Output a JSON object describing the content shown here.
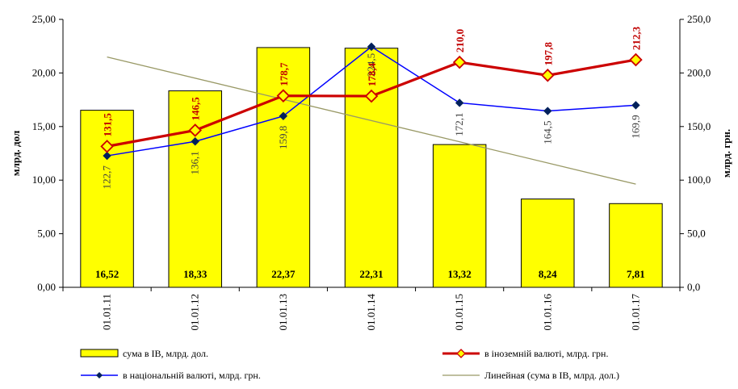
{
  "colors": {
    "bar_fill": "#ffff00",
    "bar_stroke": "#000000",
    "foreign_line": "#cc0000",
    "foreign_marker": "#ffff00",
    "national_line": "#0000ff",
    "national_marker": "#00205b",
    "trend_line": "#999966"
  },
  "chart_data": {
    "type": "bar",
    "categories": [
      "01.01.11",
      "01.01.12",
      "01.01.13",
      "01.01.14",
      "01.01.15",
      "01.01.16",
      "01.01.17"
    ],
    "left_axis": {
      "label": "млрд. дол",
      "ylim": [
        0,
        25
      ],
      "ticks": [
        "0,00",
        "5,00",
        "10,00",
        "15,00",
        "20,00",
        "25,00"
      ],
      "tick_values": [
        0,
        5,
        10,
        15,
        20,
        25
      ]
    },
    "right_axis": {
      "label": "млрд. грн.",
      "ylim": [
        0,
        250
      ],
      "ticks": [
        "0,0",
        "50,0",
        "100,0",
        "150,0",
        "200,0",
        "250,0"
      ],
      "tick_values": [
        0,
        50,
        100,
        150,
        200,
        250
      ]
    },
    "grid": false,
    "legend_position": "bottom",
    "series": [
      {
        "name": "сума в ІВ, млрд. дол.",
        "kind": "bar",
        "axis": "left",
        "values": [
          16.52,
          18.33,
          22.37,
          22.31,
          13.32,
          8.24,
          7.81
        ],
        "labels": [
          "16,52",
          "18,33",
          "22,37",
          "22,31",
          "13,32",
          "8,24",
          "7,81"
        ]
      },
      {
        "name": "в іноземній валюті, млрд. грн.",
        "kind": "line",
        "axis": "right",
        "values": [
          131.5,
          146.5,
          178.7,
          178.4,
          210.0,
          197.8,
          212.3
        ],
        "labels": [
          "131,5",
          "146,5",
          "178,7",
          "178,4",
          "210,0",
          "197,8",
          "212,3"
        ]
      },
      {
        "name": "в національній  валюті, млрд. грн.",
        "kind": "line",
        "axis": "right",
        "values": [
          122.7,
          136.1,
          159.8,
          224.5,
          172.1,
          164.5,
          169.9
        ],
        "labels": [
          "122,7",
          "136,1",
          "159,8",
          "224,5",
          "172,1",
          "164,5",
          "169,9"
        ]
      },
      {
        "name": "Линейная  (сума в ІВ, млрд. дол.)",
        "kind": "trendline",
        "axis": "left"
      }
    ]
  }
}
